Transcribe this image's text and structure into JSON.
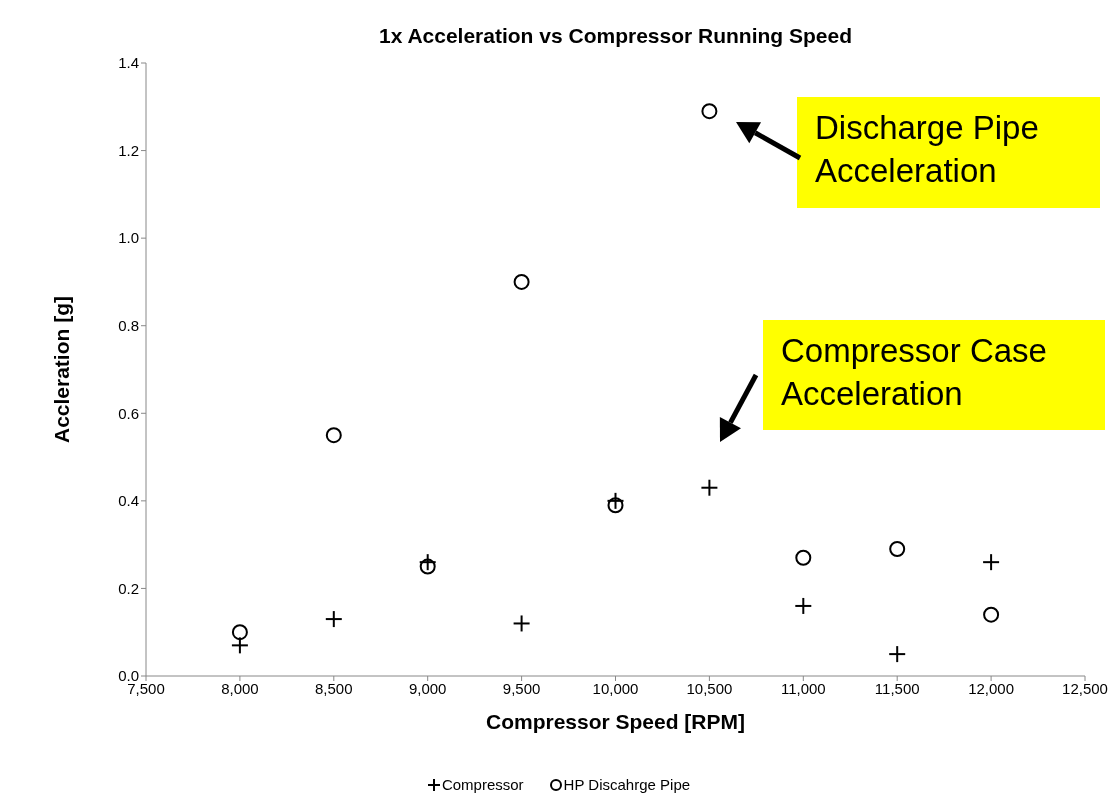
{
  "chart_data": {
    "type": "scatter",
    "title": "1x Acceleration vs Compressor Running Speed",
    "xlabel": "Compressor Speed [RPM]",
    "ylabel": "Accleration [g]",
    "x": [
      8000,
      8500,
      9000,
      9500,
      10000,
      10500,
      11000,
      11500,
      12000
    ],
    "series": [
      {
        "name": "Compressor",
        "color": "#000000",
        "marker": "cross",
        "values": [
          0.07,
          0.13,
          0.26,
          0.12,
          0.4,
          0.43,
          0.16,
          0.05,
          0.26
        ]
      },
      {
        "name": "HP Discahrge Pipe",
        "color": "#000000",
        "marker": "circle",
        "values": [
          0.1,
          0.55,
          0.25,
          0.9,
          0.39,
          1.29,
          0.27,
          0.29,
          0.14
        ]
      }
    ],
    "xlim": [
      7500,
      12500
    ],
    "xticks": [
      {
        "value": 7500,
        "label": "7,500"
      },
      {
        "value": 8000,
        "label": "8,000"
      },
      {
        "value": 8500,
        "label": "8,500"
      },
      {
        "value": 9000,
        "label": "9,000"
      },
      {
        "value": 9500,
        "label": "9,500"
      },
      {
        "value": 10000,
        "label": "10,000"
      },
      {
        "value": 10500,
        "label": "10,500"
      },
      {
        "value": 11000,
        "label": "11,000"
      },
      {
        "value": 11500,
        "label": "11,500"
      },
      {
        "value": 12000,
        "label": "12,000"
      },
      {
        "value": 12500,
        "label": "12,500"
      }
    ],
    "ylim": [
      0,
      1.4
    ],
    "yticks": [
      {
        "value": 0,
        "label": "0.0"
      },
      {
        "value": 0.2,
        "label": "0.2"
      },
      {
        "value": 0.4,
        "label": "0.4"
      },
      {
        "value": 0.6,
        "label": "0.6"
      },
      {
        "value": 0.8,
        "label": "0.8"
      },
      {
        "value": 1.0,
        "label": "1.0"
      },
      {
        "value": 1.2,
        "label": "1.2"
      },
      {
        "value": 1.4,
        "label": "1.4"
      }
    ],
    "grid": false,
    "legend": "bottom",
    "annotations": [
      "Discharge Pipe Acceleration",
      "Compressor Case Acceleration"
    ]
  }
}
